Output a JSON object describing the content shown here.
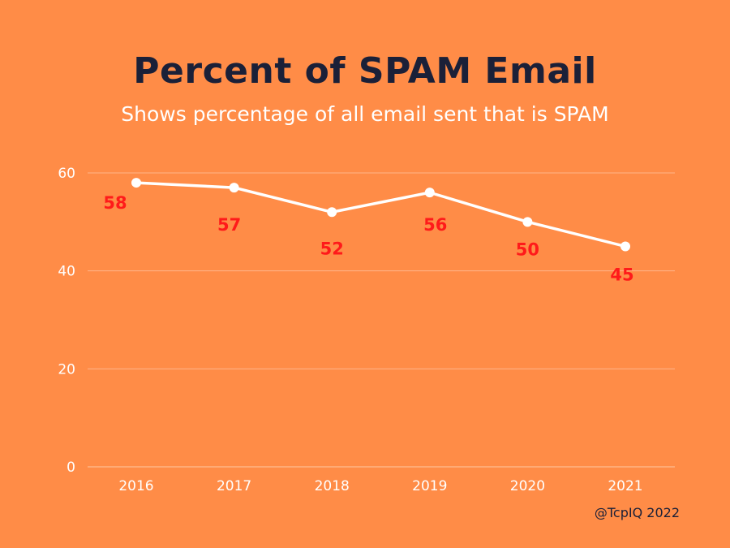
{
  "title": "Percent of SPAM Email",
  "subtitle": "Shows percentage of all email sent that is SPAM",
  "credit": "@TcpIQ 2022",
  "colors": {
    "background": "#FF8C47",
    "line": "#FFFFFF",
    "data_label": "#FF1A1A",
    "title": "#1B2038",
    "gridline": "#FFB58A"
  },
  "chart_data": {
    "type": "line",
    "categories": [
      "2016",
      "2017",
      "2018",
      "2019",
      "2020",
      "2021"
    ],
    "values": [
      58,
      57,
      52,
      56,
      50,
      45
    ],
    "yticks": [
      0,
      20,
      40,
      60
    ],
    "ylim": [
      0,
      60
    ],
    "grid": true
  }
}
